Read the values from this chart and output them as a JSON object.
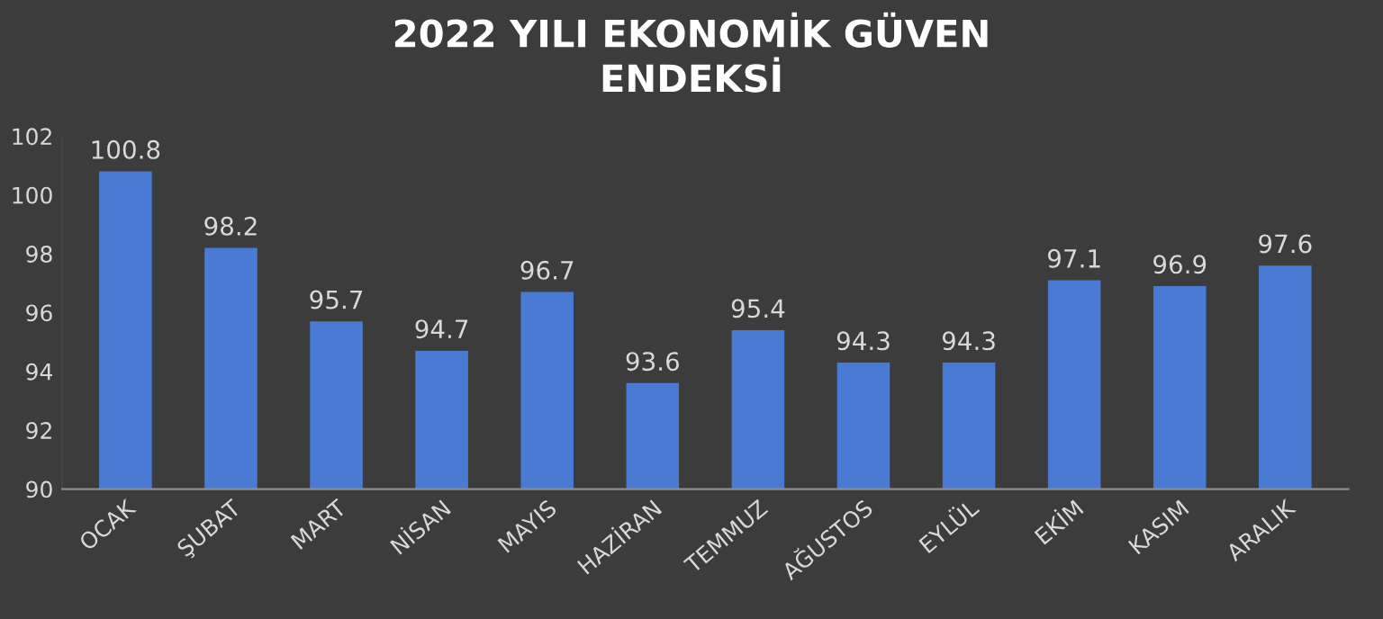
{
  "chart_data": {
    "type": "bar",
    "title": "2022 YILI EKONOMİK GÜVEN\nENDEKSİ",
    "categories": [
      "OCAK",
      "ŞUBAT",
      "MART",
      "NİSAN",
      "MAYIS",
      "HAZİRAN",
      "TEMMUZ",
      "AĞUSTOS",
      "EYLÜL",
      "EKİM",
      "KASIM",
      "ARALIK"
    ],
    "values": [
      100.8,
      98.2,
      95.7,
      94.7,
      96.7,
      93.6,
      95.4,
      94.3,
      94.3,
      97.1,
      96.9,
      97.6
    ],
    "color": "#4a7bd4",
    "ylim": [
      90,
      102
    ],
    "yticks": [
      90,
      92,
      94,
      96,
      98,
      100,
      102
    ],
    "data_labels": true,
    "grid": false,
    "legend": false
  }
}
